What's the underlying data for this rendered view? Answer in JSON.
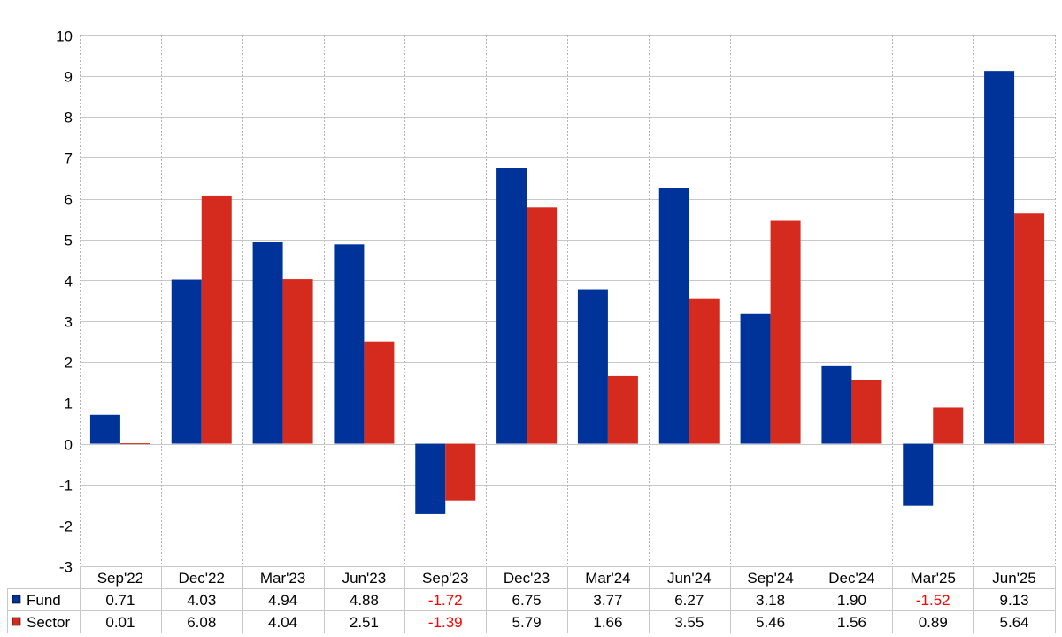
{
  "chart_data": {
    "type": "bar",
    "categories": [
      "Sep'22",
      "Dec'22",
      "Mar'23",
      "Jun'23",
      "Sep'23",
      "Dec'23",
      "Mar'24",
      "Jun'24",
      "Sep'24",
      "Dec'24",
      "Mar'25",
      "Jun'25"
    ],
    "series": [
      {
        "name": "Fund",
        "color": "#003399",
        "values": [
          0.71,
          4.03,
          4.94,
          4.88,
          -1.72,
          6.75,
          3.77,
          6.27,
          3.18,
          1.9,
          -1.52,
          9.13
        ],
        "labels": [
          "0.71",
          "4.03",
          "4.94",
          "4.88",
          "-1.72",
          "6.75",
          "3.77",
          "6.27",
          "3.18",
          "1.90",
          "-1.52",
          "9.13"
        ]
      },
      {
        "name": "Sector",
        "color": "#d52b1e",
        "values": [
          0.01,
          6.08,
          4.04,
          2.51,
          -1.39,
          5.79,
          1.66,
          3.55,
          5.46,
          1.56,
          0.89,
          5.64
        ],
        "labels": [
          "0.01",
          "6.08",
          "4.04",
          "2.51",
          "-1.39",
          "5.79",
          "1.66",
          "3.55",
          "5.46",
          "1.56",
          "0.89",
          "5.64"
        ]
      }
    ],
    "yticks": [
      "10",
      "9",
      "8",
      "7",
      "6",
      "5",
      "4",
      "3",
      "2",
      "1",
      "0",
      "-1",
      "-2",
      "-3"
    ],
    "ylim": [
      -3,
      10
    ],
    "grid": true,
    "legend": "data table below chart",
    "negative_value_color": "#ff0000"
  }
}
